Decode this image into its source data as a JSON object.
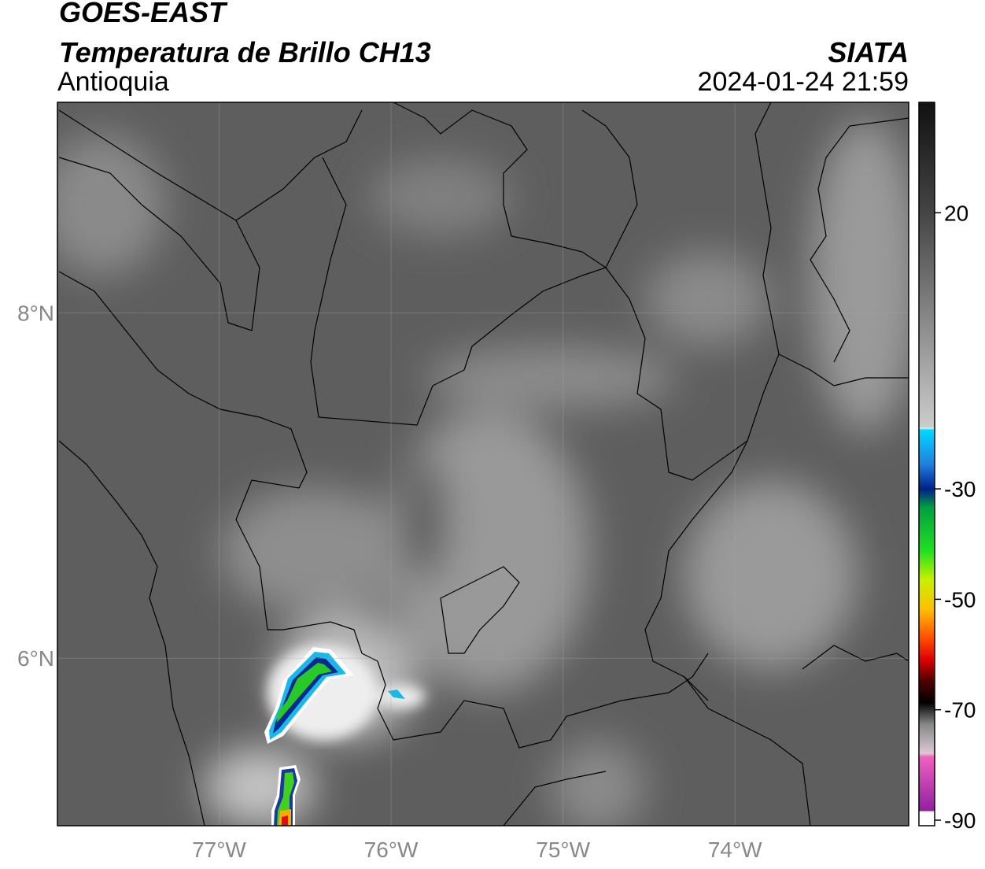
{
  "header": {
    "title": "GOES-EAST",
    "subtitle": "Temperatura de Brillo CH13",
    "region": "Antioquia",
    "source": "SIATA",
    "datetime": "2024-01-24 21:59"
  },
  "map": {
    "xlim": [
      -77.94,
      -72.99
    ],
    "ylim": [
      5.03,
      9.22
    ],
    "xticks": [
      {
        "value": -77,
        "label": "77°W"
      },
      {
        "value": -76,
        "label": "76°W"
      },
      {
        "value": -75,
        "label": "75°W"
      },
      {
        "value": -74,
        "label": "74°W"
      }
    ],
    "yticks": [
      {
        "value": 8,
        "label": "8°N"
      },
      {
        "value": 6,
        "label": "6°N"
      }
    ],
    "grid": true
  },
  "colorbar": {
    "lim": [
      -91,
      40
    ],
    "ticks": [
      20,
      -30,
      -50,
      -70,
      -90
    ]
  }
}
